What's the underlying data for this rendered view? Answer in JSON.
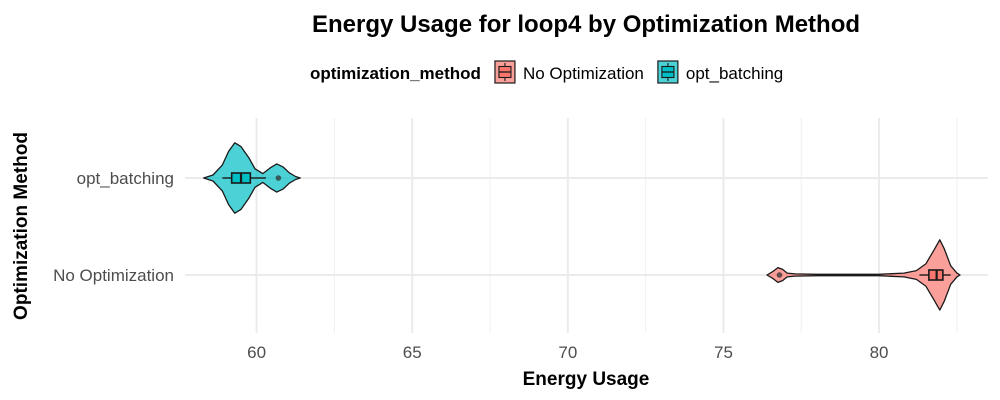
{
  "chart_data": {
    "type": "violin",
    "title": "Energy Usage for loop4 by Optimization Method",
    "xlabel": "Energy Usage",
    "ylabel": "Optimization Method",
    "xlim": [
      57.7,
      83.5
    ],
    "x_ticks": [
      60,
      65,
      70,
      75,
      80
    ],
    "grid": true,
    "legend": {
      "title": "optimization_method",
      "position": "top",
      "entries": [
        {
          "name": "No Optimization",
          "color": "#F8766D"
        },
        {
          "name": "opt_batching",
          "color": "#00BFC4"
        }
      ]
    },
    "categories": [
      "opt_batching",
      "No Optimization"
    ],
    "series": [
      {
        "name": "opt_batching",
        "color": "#00BFC4",
        "min": 58.3,
        "max": 61.4,
        "density": [
          [
            58.3,
            0
          ],
          [
            58.6,
            0.08
          ],
          [
            58.9,
            0.35
          ],
          [
            59.1,
            0.72
          ],
          [
            59.3,
            0.95
          ],
          [
            59.5,
            0.85
          ],
          [
            59.75,
            0.55
          ],
          [
            59.95,
            0.25
          ],
          [
            60.2,
            0.12
          ],
          [
            60.45,
            0.28
          ],
          [
            60.65,
            0.38
          ],
          [
            60.85,
            0.3
          ],
          [
            61.05,
            0.14
          ],
          [
            61.25,
            0.04
          ],
          [
            61.4,
            0
          ]
        ],
        "box": {
          "q1": 59.2,
          "median": 59.5,
          "q3": 59.8,
          "whisker_low": 58.9,
          "whisker_high": 60.3
        },
        "outliers": [
          60.7
        ]
      },
      {
        "name": "No Optimization",
        "color": "#F8766D",
        "min": 76.4,
        "max": 82.6,
        "density": [
          [
            76.4,
            0
          ],
          [
            76.6,
            0.1
          ],
          [
            76.75,
            0.2
          ],
          [
            76.9,
            0.15
          ],
          [
            77.05,
            0.05
          ],
          [
            77.3,
            0.03
          ],
          [
            78,
            0.02
          ],
          [
            79,
            0.02
          ],
          [
            80,
            0.02
          ],
          [
            80.8,
            0.05
          ],
          [
            81.2,
            0.12
          ],
          [
            81.5,
            0.3
          ],
          [
            81.75,
            0.65
          ],
          [
            81.95,
            0.95
          ],
          [
            82.1,
            0.7
          ],
          [
            82.3,
            0.25
          ],
          [
            82.5,
            0.05
          ],
          [
            82.6,
            0
          ]
        ],
        "box": {
          "q1": 81.6,
          "median": 81.85,
          "q3": 82.05,
          "whisker_low": 81.3,
          "whisker_high": 82.3
        },
        "outliers": [
          76.8
        ]
      }
    ]
  }
}
